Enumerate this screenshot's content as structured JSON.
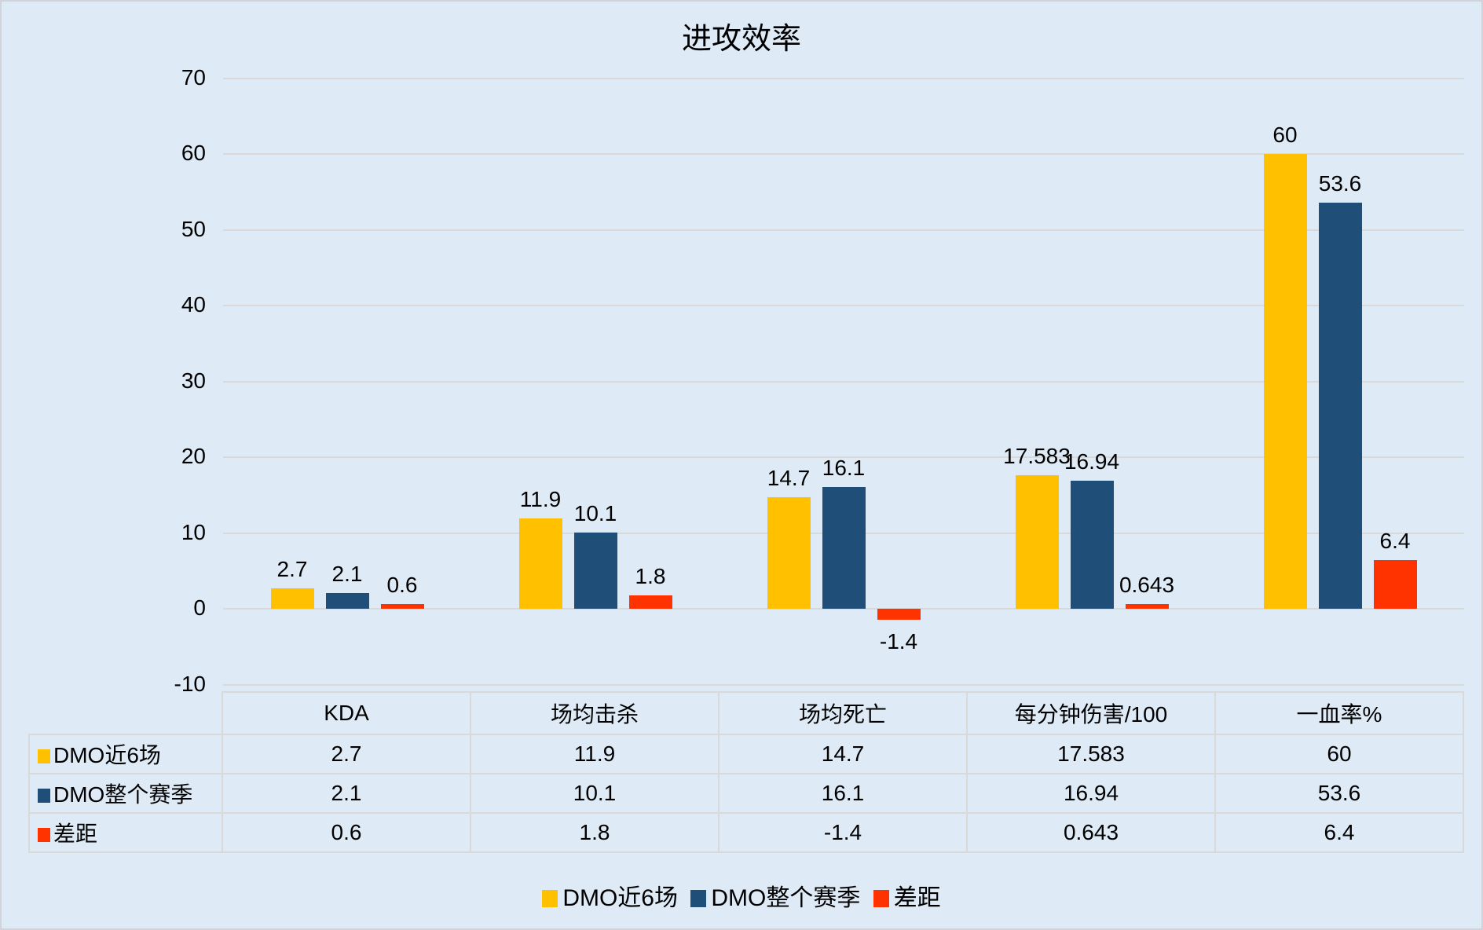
{
  "chart_data": {
    "type": "bar",
    "title": "进攻效率",
    "categories": [
      "KDA",
      "场均击杀",
      "场均死亡",
      "每分钟伤害/100",
      "一血率%"
    ],
    "series": [
      {
        "name": "DMO近6场",
        "color": "#FFC000",
        "values": [
          2.7,
          11.9,
          14.7,
          17.583,
          60
        ]
      },
      {
        "name": "DMO整个赛季",
        "color": "#1F4E79",
        "values": [
          2.1,
          10.1,
          16.1,
          16.94,
          53.6
        ]
      },
      {
        "name": "差距",
        "color": "#FF3300",
        "values": [
          0.6,
          1.8,
          -1.4,
          0.643,
          6.4
        ]
      }
    ],
    "xlabel": "",
    "ylabel": "",
    "ylim": [
      -10,
      70
    ],
    "yticks": [
      "70",
      "60",
      "50",
      "40",
      "30",
      "20",
      "10",
      "0",
      "-10"
    ],
    "grid": true,
    "legend_position": "bottom",
    "data_table": true
  },
  "title": "进攻效率",
  "table": {
    "headers": [
      "KDA",
      "场均击杀",
      "场均死亡",
      "每分钟伤害/100",
      "一血率%"
    ],
    "rows": [
      {
        "label": "DMO近6场",
        "values": [
          "2.7",
          "11.9",
          "14.7",
          "17.583",
          "60"
        ]
      },
      {
        "label": "DMO整个赛季",
        "values": [
          "2.1",
          "10.1",
          "16.1",
          "16.94",
          "53.6"
        ]
      },
      {
        "label": "差距",
        "values": [
          "0.6",
          "1.8",
          "-1.4",
          "0.643",
          "6.4"
        ]
      }
    ]
  },
  "legend": [
    "DMO近6场",
    "DMO整个赛季",
    "差距"
  ],
  "colors": {
    "series1": "#FFC000",
    "series2": "#1F4E79",
    "series3": "#FF3300",
    "background": "#DEEAF6",
    "grid": "#D9D9D9"
  }
}
